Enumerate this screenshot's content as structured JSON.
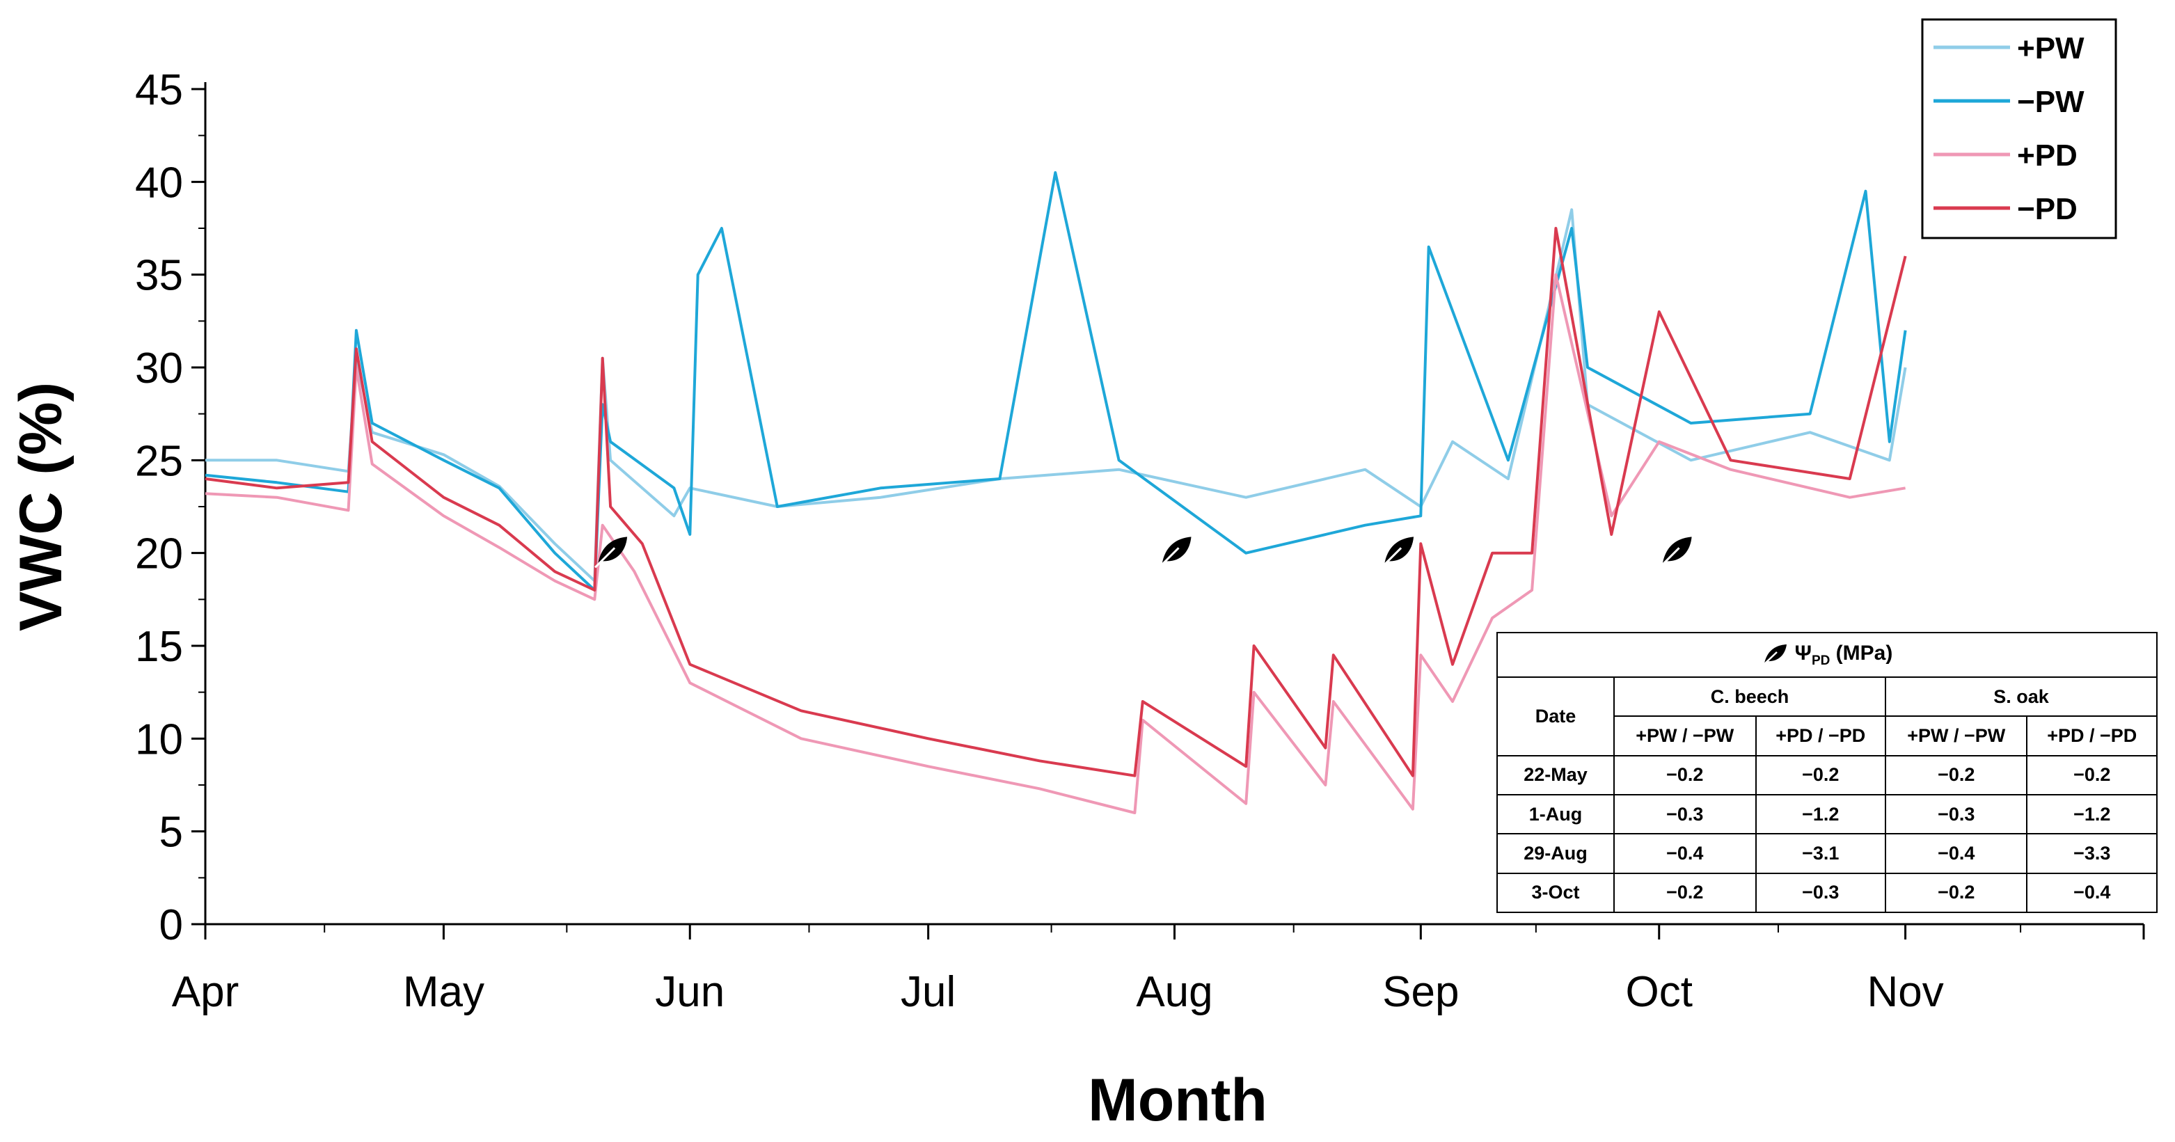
{
  "chart_data": {
    "type": "line",
    "title": "",
    "xlabel": "Month",
    "ylabel": "VWC (%)",
    "ylim": [
      0,
      45
    ],
    "yticks": [
      0,
      5,
      10,
      15,
      20,
      25,
      30,
      35,
      40,
      45
    ],
    "xlim": [
      "Apr 1",
      "Nov 30"
    ],
    "month_ticks": [
      "Apr",
      "May",
      "Jun",
      "Jul",
      "Aug",
      "Sep",
      "Oct",
      "Nov"
    ],
    "grid": false,
    "legend_position": "top-right",
    "series": [
      {
        "name": "+PW",
        "color": "#8fcde8",
        "points": [
          [
            "Apr 1",
            25.0
          ],
          [
            "Apr 10",
            25.0
          ],
          [
            "Apr 19",
            24.4
          ],
          [
            "Apr 20",
            30.5
          ],
          [
            "Apr 22",
            26.5
          ],
          [
            "May 1",
            25.3
          ],
          [
            "May 8",
            23.6
          ],
          [
            "May 15",
            20.5
          ],
          [
            "May 20",
            18.5
          ],
          [
            "May 21",
            30.5
          ],
          [
            "May 22",
            25.0
          ],
          [
            "May 30",
            22.0
          ],
          [
            "Jun 1",
            23.5
          ],
          [
            "Jun 12",
            22.5
          ],
          [
            "Jun 25",
            23.0
          ],
          [
            "Jul 10",
            24.0
          ],
          [
            "Jul 25",
            24.5
          ],
          [
            "Aug 10",
            23.0
          ],
          [
            "Aug 25",
            24.5
          ],
          [
            "Sep 1",
            22.5
          ],
          [
            "Sep 5",
            26.0
          ],
          [
            "Sep 12",
            24.0
          ],
          [
            "Sep 20",
            38.5
          ],
          [
            "Sep 22",
            28.0
          ],
          [
            "Oct 5",
            25.0
          ],
          [
            "Oct 20",
            26.5
          ],
          [
            "Oct 30",
            25.0
          ],
          [
            "Nov 1",
            30.0
          ]
        ]
      },
      {
        "name": "−PW",
        "color": "#1ea7d8",
        "points": [
          [
            "Apr 1",
            24.2
          ],
          [
            "Apr 10",
            23.8
          ],
          [
            "Apr 19",
            23.3
          ],
          [
            "Apr 20",
            32.0
          ],
          [
            "Apr 22",
            27.0
          ],
          [
            "May 1",
            25.0
          ],
          [
            "May 8",
            23.5
          ],
          [
            "May 15",
            20.0
          ],
          [
            "May 20",
            18.0
          ],
          [
            "May 21",
            28.0
          ],
          [
            "May 22",
            26.0
          ],
          [
            "May 30",
            23.5
          ],
          [
            "Jun 1",
            21.0
          ],
          [
            "Jun 2",
            35.0
          ],
          [
            "Jun 5",
            37.5
          ],
          [
            "Jun 12",
            22.5
          ],
          [
            "Jun 25",
            23.5
          ],
          [
            "Jul 10",
            24.0
          ],
          [
            "Jul 17",
            40.5
          ],
          [
            "Jul 25",
            25.0
          ],
          [
            "Aug 10",
            20.0
          ],
          [
            "Aug 25",
            21.5
          ],
          [
            "Sep 1",
            22.0
          ],
          [
            "Sep 2",
            36.5
          ],
          [
            "Sep 12",
            25.0
          ],
          [
            "Sep 20",
            37.5
          ],
          [
            "Sep 22",
            30.0
          ],
          [
            "Oct 5",
            27.0
          ],
          [
            "Oct 20",
            27.5
          ],
          [
            "Oct 27",
            39.5
          ],
          [
            "Oct 30",
            26.0
          ],
          [
            "Nov 1",
            32.0
          ]
        ]
      },
      {
        "name": "+PD",
        "color": "#ef98b5",
        "points": [
          [
            "Apr 1",
            23.2
          ],
          [
            "Apr 10",
            23.0
          ],
          [
            "Apr 19",
            22.3
          ],
          [
            "Apr 20",
            30.0
          ],
          [
            "Apr 22",
            24.8
          ],
          [
            "May 1",
            22.0
          ],
          [
            "May 8",
            20.3
          ],
          [
            "May 15",
            18.5
          ],
          [
            "May 20",
            17.5
          ],
          [
            "May 21",
            21.5
          ],
          [
            "May 25",
            19.0
          ],
          [
            "Jun 1",
            13.0
          ],
          [
            "Jun 15",
            10.0
          ],
          [
            "Jul 1",
            8.5
          ],
          [
            "Jul 15",
            7.3
          ],
          [
            "Jul 27",
            6.0
          ],
          [
            "Jul 28",
            11.0
          ],
          [
            "Aug 10",
            6.5
          ],
          [
            "Aug 11",
            12.5
          ],
          [
            "Aug 20",
            7.5
          ],
          [
            "Aug 21",
            12.0
          ],
          [
            "Aug 31",
            6.2
          ],
          [
            "Sep 1",
            14.5
          ],
          [
            "Sep 5",
            12.0
          ],
          [
            "Sep 10",
            16.5
          ],
          [
            "Sep 15",
            18.0
          ],
          [
            "Sep 18",
            35.0
          ],
          [
            "Sep 25",
            22.0
          ],
          [
            "Oct 1",
            26.0
          ],
          [
            "Oct 10",
            24.5
          ],
          [
            "Oct 25",
            23.0
          ],
          [
            "Nov 1",
            23.5
          ]
        ]
      },
      {
        "name": "−PD",
        "color": "#d93a4f",
        "points": [
          [
            "Apr 1",
            24.0
          ],
          [
            "Apr 10",
            23.5
          ],
          [
            "Apr 19",
            23.8
          ],
          [
            "Apr 20",
            31.0
          ],
          [
            "Apr 22",
            26.0
          ],
          [
            "May 1",
            23.0
          ],
          [
            "May 8",
            21.5
          ],
          [
            "May 15",
            19.0
          ],
          [
            "May 20",
            18.0
          ],
          [
            "May 21",
            30.5
          ],
          [
            "May 22",
            22.5
          ],
          [
            "May 26",
            20.5
          ],
          [
            "Jun 1",
            14.0
          ],
          [
            "Jun 15",
            11.5
          ],
          [
            "Jul 1",
            10.0
          ],
          [
            "Jul 15",
            8.8
          ],
          [
            "Jul 27",
            8.0
          ],
          [
            "Jul 28",
            12.0
          ],
          [
            "Aug 10",
            8.5
          ],
          [
            "Aug 11",
            15.0
          ],
          [
            "Aug 20",
            9.5
          ],
          [
            "Aug 21",
            14.5
          ],
          [
            "Aug 31",
            8.0
          ],
          [
            "Sep 1",
            20.5
          ],
          [
            "Sep 5",
            14.0
          ],
          [
            "Sep 10",
            20.0
          ],
          [
            "Sep 15",
            20.0
          ],
          [
            "Sep 18",
            37.5
          ],
          [
            "Sep 25",
            21.0
          ],
          [
            "Oct 1",
            33.0
          ],
          [
            "Oct 10",
            25.0
          ],
          [
            "Oct 25",
            24.0
          ],
          [
            "Nov 1",
            36.0
          ]
        ]
      }
    ],
    "leaf_markers": [
      {
        "date": "May 22",
        "vwc": 20.2
      },
      {
        "date": "Aug 1",
        "vwc": 20.2
      },
      {
        "date": "Aug 29",
        "vwc": 20.2
      },
      {
        "date": "Oct 3",
        "vwc": 20.2
      }
    ],
    "marker_icon": "leaf-icon"
  },
  "psi_table": {
    "title": "Ψ",
    "title_subscript": "PD",
    "title_unit": " (MPa)",
    "date_header": "Date",
    "species": [
      "C. beech",
      "S. oak"
    ],
    "columns": [
      "+PW / −PW",
      "+PD / −PD",
      "+PW / −PW",
      "+PD / −PD"
    ],
    "rows": [
      {
        "date": "22-May",
        "values": [
          "−0.2",
          "−0.2",
          "−0.2",
          "−0.2"
        ]
      },
      {
        "date": "1-Aug",
        "values": [
          "−0.3",
          "−1.2",
          "−0.3",
          "−1.2"
        ]
      },
      {
        "date": "29-Aug",
        "values": [
          "−0.4",
          "−3.1",
          "−0.4",
          "−3.3"
        ]
      },
      {
        "date": "3-Oct",
        "values": [
          "−0.2",
          "−0.3",
          "−0.2",
          "−0.4"
        ]
      }
    ]
  }
}
